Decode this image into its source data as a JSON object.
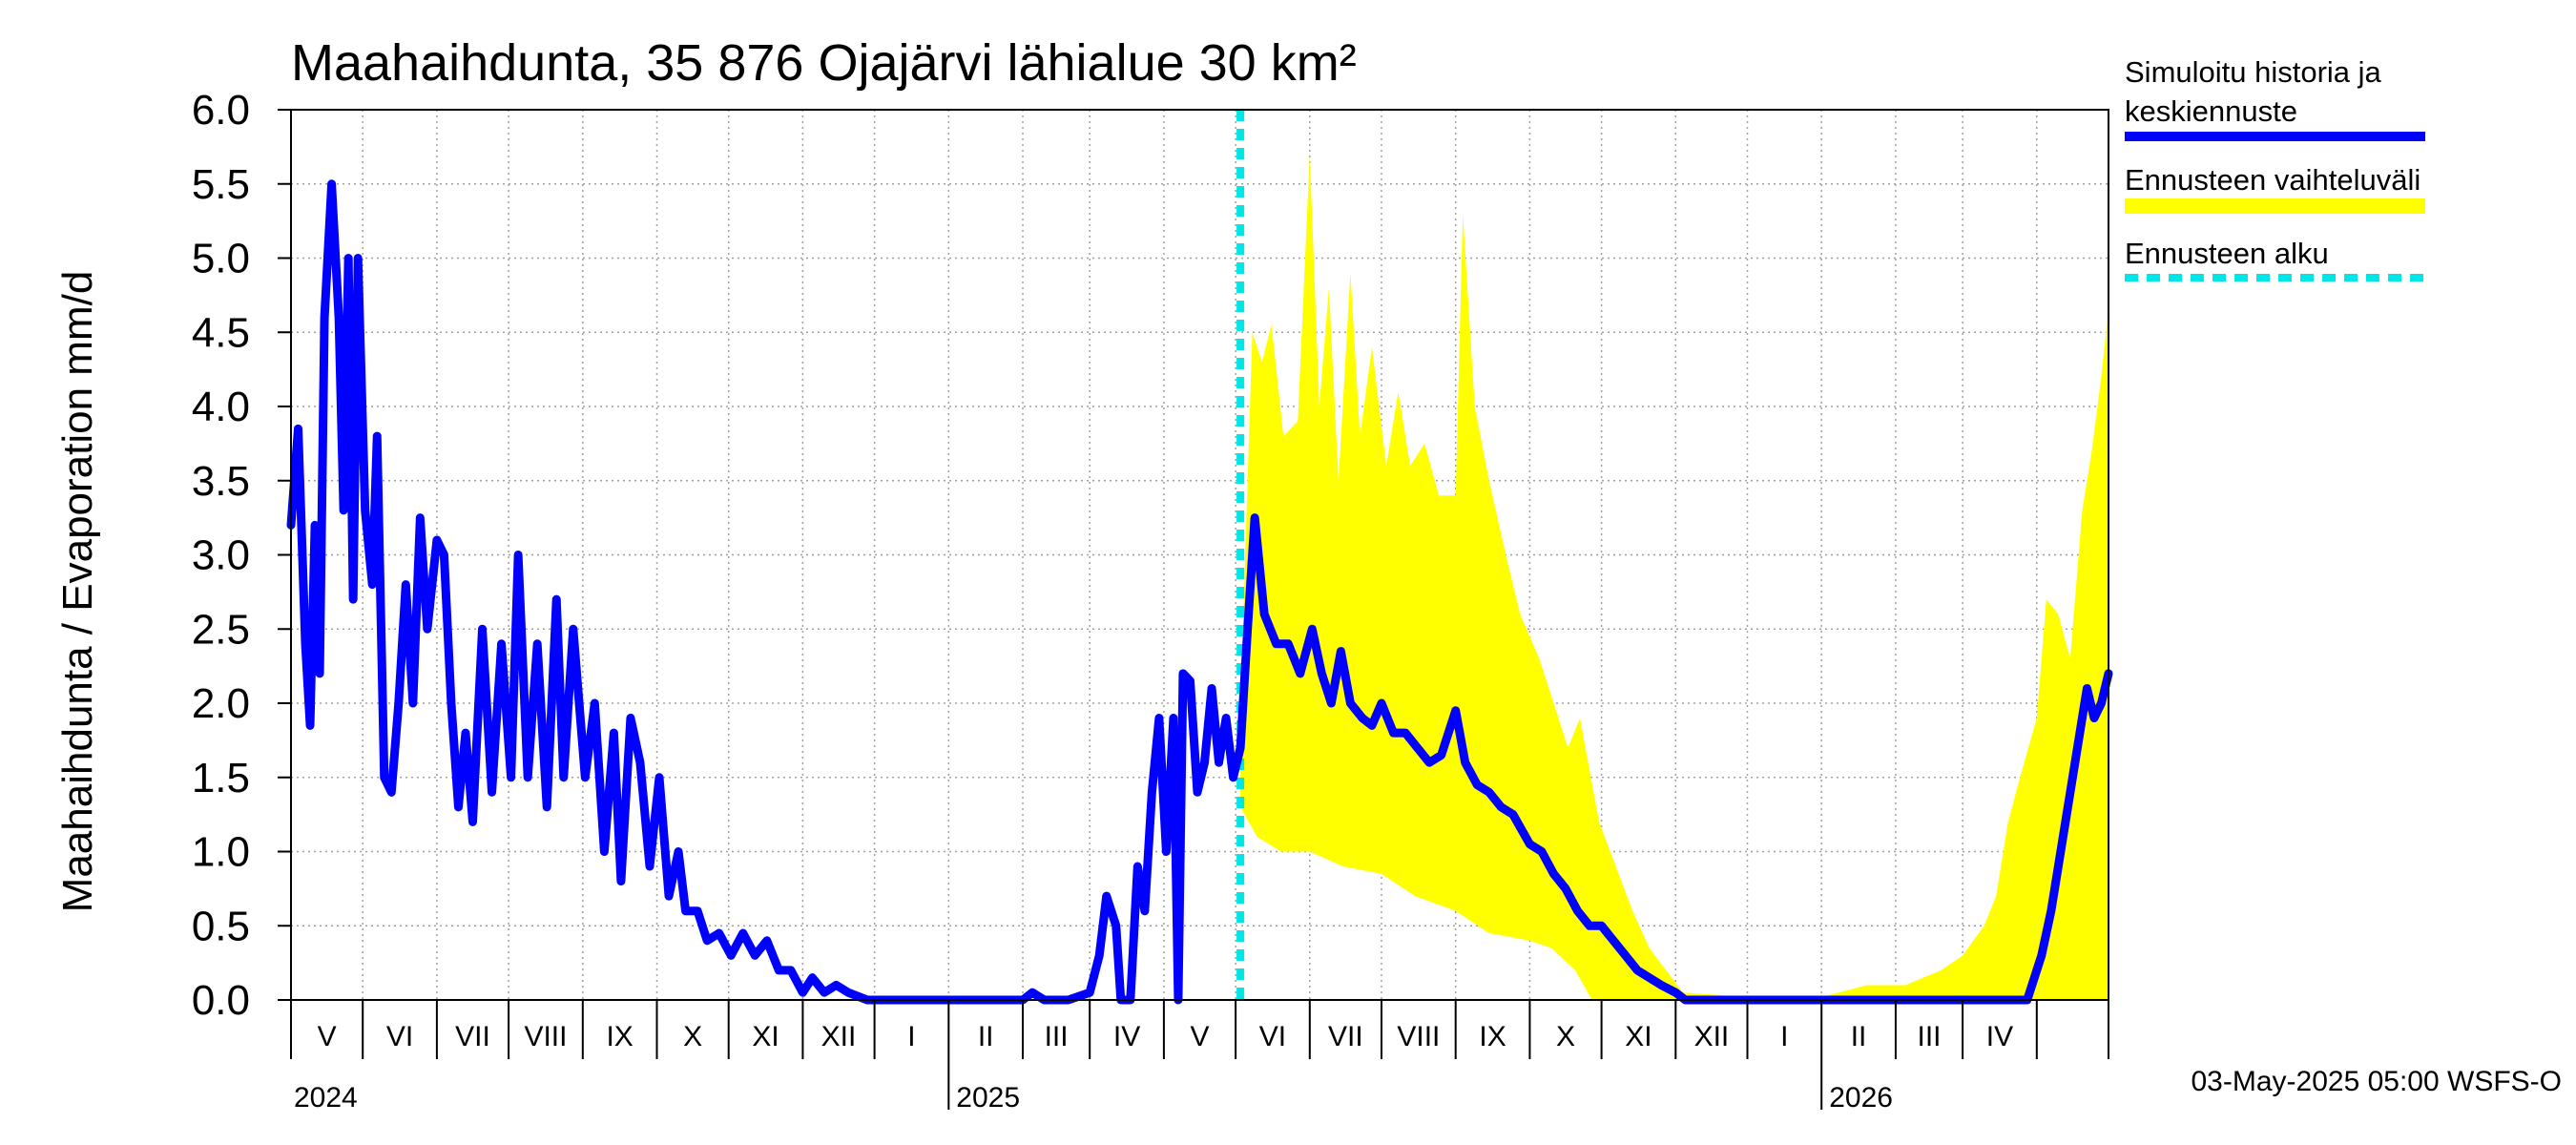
{
  "chart_data": {
    "type": "area",
    "title": "Maahaihdunta, 35 876 Ojajärvi lähialue 30 km²",
    "ylabel": "Maahaihdunta / Evaporation   mm/d",
    "ylim": [
      0,
      6
    ],
    "yticks": [
      "0.0",
      "0.5",
      "1.0",
      "1.5",
      "2.0",
      "2.5",
      "3.0",
      "3.5",
      "4.0",
      "4.5",
      "5.0",
      "5.5",
      "6.0"
    ],
    "xlim": [
      "2024-04-01",
      "2026-05-01"
    ],
    "forecast_start": "2025-05-03",
    "months": [
      "V",
      "VI",
      "VII",
      "VIII",
      "IX",
      "X",
      "XI",
      "XII",
      "I",
      "II",
      "III",
      "IV",
      "V",
      "VI",
      "VII",
      "VIII",
      "IX",
      "X",
      "XI",
      "XII",
      "I",
      "II",
      "III",
      "IV"
    ],
    "years": [
      "2024",
      "2025",
      "2026"
    ],
    "grid": true,
    "legend_position": "right",
    "series": [
      {
        "name": "Simuloitu historia ja keskiennuste",
        "color": "#0000ff",
        "points": [
          [
            "2024-04-01",
            3.2
          ],
          [
            "2024-04-04",
            3.85
          ],
          [
            "2024-04-07",
            2.4
          ],
          [
            "2024-04-09",
            1.85
          ],
          [
            "2024-04-11",
            3.2
          ],
          [
            "2024-04-13",
            2.2
          ],
          [
            "2024-04-15",
            4.6
          ],
          [
            "2024-04-18",
            5.5
          ],
          [
            "2024-04-21",
            4.6
          ],
          [
            "2024-04-23",
            3.3
          ],
          [
            "2024-04-25",
            5.0
          ],
          [
            "2024-04-27",
            2.7
          ],
          [
            "2024-04-29",
            5.0
          ],
          [
            "2024-05-02",
            3.3
          ],
          [
            "2024-05-05",
            2.8
          ],
          [
            "2024-05-07",
            3.8
          ],
          [
            "2024-05-10",
            1.5
          ],
          [
            "2024-05-13",
            1.4
          ],
          [
            "2024-05-16",
            2.0
          ],
          [
            "2024-05-19",
            2.8
          ],
          [
            "2024-05-22",
            2.0
          ],
          [
            "2024-05-25",
            3.25
          ],
          [
            "2024-05-28",
            2.5
          ],
          [
            "2024-06-01",
            3.1
          ],
          [
            "2024-06-04",
            3.0
          ],
          [
            "2024-06-07",
            2.0
          ],
          [
            "2024-06-10",
            1.3
          ],
          [
            "2024-06-13",
            1.8
          ],
          [
            "2024-06-16",
            1.2
          ],
          [
            "2024-06-20",
            2.5
          ],
          [
            "2024-06-24",
            1.4
          ],
          [
            "2024-06-28",
            2.4
          ],
          [
            "2024-07-02",
            1.5
          ],
          [
            "2024-07-05",
            3.0
          ],
          [
            "2024-07-09",
            1.5
          ],
          [
            "2024-07-13",
            2.4
          ],
          [
            "2024-07-17",
            1.3
          ],
          [
            "2024-07-21",
            2.7
          ],
          [
            "2024-07-24",
            1.5
          ],
          [
            "2024-07-28",
            2.5
          ],
          [
            "2024-08-02",
            1.5
          ],
          [
            "2024-08-06",
            2.0
          ],
          [
            "2024-08-10",
            1.0
          ],
          [
            "2024-08-14",
            1.8
          ],
          [
            "2024-08-17",
            0.8
          ],
          [
            "2024-08-21",
            1.9
          ],
          [
            "2024-08-25",
            1.6
          ],
          [
            "2024-08-29",
            0.9
          ],
          [
            "2024-09-02",
            1.5
          ],
          [
            "2024-09-06",
            0.7
          ],
          [
            "2024-09-10",
            1.0
          ],
          [
            "2024-09-13",
            0.6
          ],
          [
            "2024-09-18",
            0.6
          ],
          [
            "2024-09-22",
            0.4
          ],
          [
            "2024-09-27",
            0.45
          ],
          [
            "2024-10-02",
            0.3
          ],
          [
            "2024-10-07",
            0.45
          ],
          [
            "2024-10-12",
            0.3
          ],
          [
            "2024-10-17",
            0.4
          ],
          [
            "2024-10-22",
            0.2
          ],
          [
            "2024-10-27",
            0.2
          ],
          [
            "2024-11-01",
            0.05
          ],
          [
            "2024-11-05",
            0.15
          ],
          [
            "2024-11-10",
            0.05
          ],
          [
            "2024-11-15",
            0.1
          ],
          [
            "2024-11-20",
            0.05
          ],
          [
            "2024-11-28",
            0.0
          ],
          [
            "2025-01-01",
            0.0
          ],
          [
            "2025-02-01",
            0.0
          ],
          [
            "2025-02-05",
            0.05
          ],
          [
            "2025-02-10",
            0.0
          ],
          [
            "2025-02-20",
            0.0
          ],
          [
            "2025-03-01",
            0.05
          ],
          [
            "2025-03-05",
            0.3
          ],
          [
            "2025-03-08",
            0.7
          ],
          [
            "2025-03-12",
            0.5
          ],
          [
            "2025-03-14",
            0.0
          ],
          [
            "2025-03-18",
            0.0
          ],
          [
            "2025-03-21",
            0.9
          ],
          [
            "2025-03-24",
            0.6
          ],
          [
            "2025-03-27",
            1.4
          ],
          [
            "2025-03-30",
            1.9
          ],
          [
            "2025-04-02",
            1.0
          ],
          [
            "2025-04-05",
            1.9
          ],
          [
            "2025-04-07",
            0.0
          ],
          [
            "2025-04-09",
            2.2
          ],
          [
            "2025-04-12",
            2.15
          ],
          [
            "2025-04-15",
            1.4
          ],
          [
            "2025-04-18",
            1.6
          ],
          [
            "2025-04-21",
            2.1
          ],
          [
            "2025-04-24",
            1.6
          ],
          [
            "2025-04-27",
            1.9
          ],
          [
            "2025-04-30",
            1.5
          ],
          [
            "2025-05-03",
            1.7
          ],
          [
            "2025-05-06",
            2.5
          ],
          [
            "2025-05-09",
            3.25
          ],
          [
            "2025-05-13",
            2.6
          ],
          [
            "2025-05-18",
            2.4
          ],
          [
            "2025-05-23",
            2.4
          ],
          [
            "2025-05-28",
            2.2
          ],
          [
            "2025-06-02",
            2.5
          ],
          [
            "2025-06-06",
            2.2
          ],
          [
            "2025-06-10",
            2.0
          ],
          [
            "2025-06-14",
            2.35
          ],
          [
            "2025-06-18",
            2.0
          ],
          [
            "2025-06-23",
            1.9
          ],
          [
            "2025-06-27",
            1.85
          ],
          [
            "2025-07-01",
            2.0
          ],
          [
            "2025-07-06",
            1.8
          ],
          [
            "2025-07-11",
            1.8
          ],
          [
            "2025-07-16",
            1.7
          ],
          [
            "2025-07-21",
            1.6
          ],
          [
            "2025-07-26",
            1.65
          ],
          [
            "2025-08-01",
            1.95
          ],
          [
            "2025-08-05",
            1.6
          ],
          [
            "2025-08-10",
            1.45
          ],
          [
            "2025-08-15",
            1.4
          ],
          [
            "2025-08-20",
            1.3
          ],
          [
            "2025-08-25",
            1.25
          ],
          [
            "2025-09-01",
            1.05
          ],
          [
            "2025-09-06",
            1.0
          ],
          [
            "2025-09-11",
            0.85
          ],
          [
            "2025-09-16",
            0.75
          ],
          [
            "2025-09-21",
            0.6
          ],
          [
            "2025-09-26",
            0.5
          ],
          [
            "2025-10-01",
            0.5
          ],
          [
            "2025-10-06",
            0.4
          ],
          [
            "2025-10-11",
            0.3
          ],
          [
            "2025-10-16",
            0.2
          ],
          [
            "2025-10-21",
            0.15
          ],
          [
            "2025-10-26",
            0.1
          ],
          [
            "2025-11-01",
            0.05
          ],
          [
            "2025-11-05",
            0.0
          ],
          [
            "2025-12-01",
            0.0
          ],
          [
            "2026-01-01",
            0.0
          ],
          [
            "2026-02-01",
            0.0
          ],
          [
            "2026-03-01",
            0.0
          ],
          [
            "2026-03-28",
            0.0
          ],
          [
            "2026-04-03",
            0.3
          ],
          [
            "2026-04-07",
            0.6
          ],
          [
            "2026-04-11",
            1.0
          ],
          [
            "2026-04-15",
            1.4
          ],
          [
            "2026-04-19",
            1.8
          ],
          [
            "2026-04-22",
            2.1
          ],
          [
            "2026-04-25",
            1.9
          ],
          [
            "2026-04-28",
            2.0
          ],
          [
            "2026-05-01",
            2.2
          ]
        ]
      },
      {
        "name": "Ennusteen vaihteluväli",
        "color": "#ffff00",
        "upper": [
          [
            "2025-05-03",
            1.9
          ],
          [
            "2025-05-05",
            3.0
          ],
          [
            "2025-05-08",
            4.5
          ],
          [
            "2025-05-12",
            4.3
          ],
          [
            "2025-05-16",
            4.55
          ],
          [
            "2025-05-21",
            3.8
          ],
          [
            "2025-05-27",
            3.9
          ],
          [
            "2025-06-01",
            5.7
          ],
          [
            "2025-06-05",
            4.0
          ],
          [
            "2025-06-09",
            4.8
          ],
          [
            "2025-06-13",
            3.5
          ],
          [
            "2025-06-18",
            4.9
          ],
          [
            "2025-06-22",
            3.8
          ],
          [
            "2025-06-27",
            4.4
          ],
          [
            "2025-07-03",
            3.6
          ],
          [
            "2025-07-08",
            4.1
          ],
          [
            "2025-07-13",
            3.6
          ],
          [
            "2025-07-19",
            3.75
          ],
          [
            "2025-07-25",
            3.4
          ],
          [
            "2025-08-01",
            3.4
          ],
          [
            "2025-08-04",
            5.3
          ],
          [
            "2025-08-09",
            4.0
          ],
          [
            "2025-08-15",
            3.5
          ],
          [
            "2025-08-22",
            3.0
          ],
          [
            "2025-08-28",
            2.6
          ],
          [
            "2025-09-05",
            2.3
          ],
          [
            "2025-09-12",
            1.95
          ],
          [
            "2025-09-17",
            1.7
          ],
          [
            "2025-09-22",
            1.9
          ],
          [
            "2025-09-30",
            1.2
          ],
          [
            "2025-10-07",
            0.9
          ],
          [
            "2025-10-14",
            0.6
          ],
          [
            "2025-10-21",
            0.35
          ],
          [
            "2025-10-28",
            0.2
          ],
          [
            "2025-11-04",
            0.05
          ],
          [
            "2025-12-01",
            0.02
          ],
          [
            "2026-01-01",
            0.02
          ],
          [
            "2026-01-20",
            0.1
          ],
          [
            "2026-02-05",
            0.1
          ],
          [
            "2026-02-20",
            0.2
          ],
          [
            "2026-03-01",
            0.3
          ],
          [
            "2026-03-10",
            0.5
          ],
          [
            "2026-03-15",
            0.7
          ],
          [
            "2026-03-20",
            1.2
          ],
          [
            "2026-03-25",
            1.5
          ],
          [
            "2026-04-01",
            1.9
          ],
          [
            "2026-04-05",
            2.7
          ],
          [
            "2026-04-10",
            2.6
          ],
          [
            "2026-04-15",
            2.3
          ],
          [
            "2026-04-20",
            3.3
          ],
          [
            "2026-04-24",
            3.7
          ],
          [
            "2026-04-28",
            4.2
          ],
          [
            "2026-05-01",
            4.65
          ]
        ],
        "lower": [
          [
            "2025-05-03",
            1.3
          ],
          [
            "2025-05-10",
            1.1
          ],
          [
            "2025-05-20",
            1.0
          ],
          [
            "2025-06-01",
            1.0
          ],
          [
            "2025-06-15",
            0.9
          ],
          [
            "2025-07-01",
            0.85
          ],
          [
            "2025-07-15",
            0.7
          ],
          [
            "2025-08-01",
            0.6
          ],
          [
            "2025-08-15",
            0.45
          ],
          [
            "2025-09-01",
            0.4
          ],
          [
            "2025-09-10",
            0.35
          ],
          [
            "2025-09-20",
            0.2
          ],
          [
            "2025-09-27",
            0.0
          ],
          [
            "2026-04-01",
            0.0
          ],
          [
            "2026-05-01",
            0.0
          ]
        ]
      }
    ]
  },
  "legend": {
    "history_label_1": "Simuloitu historia ja",
    "history_label_2": "keskiennuste",
    "range_label": "Ennusteen vaihteluväli",
    "start_label": "Ennusteen alku"
  },
  "footer": "03-May-2025 05:00 WSFS-O",
  "colors": {
    "history": "#0000ff",
    "range": "#ffff00",
    "forecast_start": "#00e5e5",
    "grid": "#a0a0a0"
  }
}
